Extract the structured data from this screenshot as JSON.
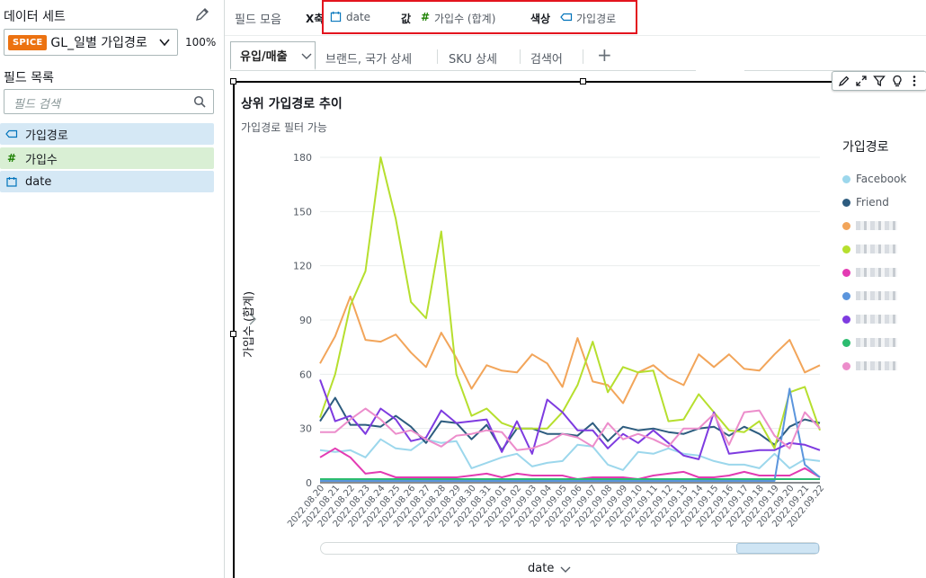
{
  "left_panel": {
    "dataset_title": "데이터 세트",
    "dataset_badge": "SPICE",
    "dataset_name": "GL_일별 가입경로",
    "dataset_percent": "100%",
    "field_list_title": "필드 목록",
    "field_search_placeholder": "필드 검색",
    "fields": [
      {
        "icon": "dimension-tag-icon",
        "name": "가입경로"
      },
      {
        "icon": "measure-hash-icon",
        "name": "가입수"
      },
      {
        "icon": "date-calendar-icon",
        "name": "date"
      }
    ]
  },
  "field_wells": {
    "label": "필드 모음",
    "x_axis_label": "X축",
    "x_axis_value": "date",
    "value_label": "값",
    "value_value": "가입수 (합계)",
    "color_label": "색상",
    "color_value": "가입경로"
  },
  "tabs": {
    "active": "유입/매출",
    "others": [
      "브랜드, 국가 상세",
      "SKU 상세",
      "검색어"
    ]
  },
  "visual": {
    "title": "상위 가입경로 추이",
    "subtitle": "가입경로 필터 가능",
    "y_axis_title": "가입수 (합계)",
    "x_axis_title": "date",
    "legend_title": "가입경로",
    "legend": [
      {
        "name": "Facebook",
        "color": "#9cd7ec"
      },
      {
        "name": "Friend",
        "color": "#2d5c7f"
      },
      {
        "name": "",
        "color": "#f2a55a"
      },
      {
        "name": "",
        "color": "#b6df2e"
      },
      {
        "name": "",
        "color": "#e33bb3"
      },
      {
        "name": "",
        "color": "#5b95dd"
      },
      {
        "name": "",
        "color": "#7e3be0"
      },
      {
        "name": "",
        "color": "#2cbc6f"
      },
      {
        "name": "",
        "color": "#ec8dcb"
      }
    ]
  },
  "chart_data": {
    "type": "line",
    "xlabel": "date",
    "ylabel": "가입수 (합계)",
    "ylim": [
      0,
      180
    ],
    "yticks": [
      0,
      30,
      60,
      90,
      120,
      150,
      180
    ],
    "x": [
      "2022.08.20",
      "2022.08.21",
      "2022.08.22",
      "2022.08.23",
      "2022.08.24",
      "2022.08.25",
      "2022.08.26",
      "2022.08.27",
      "2022.08.28",
      "2022.08.29",
      "2022.08.30",
      "2022.08.31",
      "2022.09.01",
      "2022.09.02",
      "2022.09.03",
      "2022.09.04",
      "2022.09.05",
      "2022.09.06",
      "2022.09.07",
      "2022.09.08",
      "2022.09.09",
      "2022.09.10",
      "2022.09.11",
      "2022.09.12",
      "2022.09.13",
      "2022.09.14",
      "2022.09.15",
      "2022.09.16",
      "2022.09.17",
      "2022.09.18",
      "2022.09.19",
      "2022.09.20",
      "2022.09.21",
      "2022.09.22"
    ],
    "series": [
      {
        "name": "Facebook",
        "color": "#9cd7ec",
        "values": [
          18,
          17,
          18,
          14,
          24,
          19,
          18,
          24,
          22,
          23,
          8,
          11,
          14,
          16,
          9,
          11,
          12,
          21,
          20,
          10,
          7,
          17,
          16,
          19,
          16,
          15,
          12,
          10,
          10,
          8,
          16,
          8,
          13,
          12
        ]
      },
      {
        "name": "Friend",
        "color": "#2d5c7f",
        "values": [
          34,
          47,
          32,
          32,
          31,
          37,
          31,
          22,
          34,
          33,
          24,
          32,
          18,
          30,
          30,
          27,
          27,
          26,
          33,
          23,
          31,
          29,
          30,
          28,
          27,
          30,
          31,
          26,
          31,
          27,
          21,
          31,
          35,
          33
        ]
      },
      {
        "name": "",
        "color": "#f2a55a",
        "values": [
          66,
          81,
          103,
          79,
          78,
          82,
          72,
          64,
          83,
          69,
          52,
          65,
          62,
          61,
          71,
          66,
          53,
          80,
          56,
          54,
          44,
          61,
          65,
          58,
          54,
          71,
          64,
          71,
          63,
          62,
          71,
          79,
          61,
          65
        ]
      },
      {
        "name": "",
        "color": "#b6df2e",
        "values": [
          36,
          60,
          98,
          117,
          180,
          146,
          100,
          91,
          139,
          60,
          37,
          41,
          33,
          30,
          30,
          30,
          39,
          54,
          78,
          50,
          64,
          61,
          62,
          34,
          35,
          49,
          39,
          29,
          28,
          34,
          19,
          50,
          53,
          29
        ]
      },
      {
        "name": "",
        "color": "#e33bb3",
        "values": [
          14,
          19,
          14,
          5,
          6,
          3,
          3,
          3,
          3,
          3,
          4,
          5,
          3,
          5,
          4,
          4,
          4,
          2,
          3,
          3,
          3,
          2,
          4,
          5,
          6,
          3,
          3,
          4,
          6,
          4,
          4,
          4,
          8,
          3
        ]
      },
      {
        "name": "",
        "color": "#5b95dd",
        "values": [
          1,
          1,
          1,
          1,
          1,
          1,
          1,
          1,
          1,
          1,
          1,
          1,
          1,
          1,
          1,
          1,
          1,
          1,
          1,
          1,
          1,
          1,
          1,
          1,
          1,
          1,
          1,
          1,
          1,
          1,
          1,
          52,
          10,
          3
        ]
      },
      {
        "name": "",
        "color": "#7e3be0",
        "values": [
          57,
          34,
          37,
          27,
          41,
          35,
          23,
          25,
          40,
          33,
          34,
          35,
          17,
          34,
          16,
          46,
          39,
          29,
          29,
          19,
          27,
          22,
          29,
          22,
          15,
          13,
          39,
          16,
          17,
          18,
          18,
          22,
          21,
          18
        ]
      },
      {
        "name": "",
        "color": "#2cbc6f",
        "values": [
          2,
          2,
          2,
          2,
          2,
          2,
          2,
          2,
          2,
          2,
          2,
          2,
          2,
          2,
          2,
          2,
          2,
          2,
          2,
          2,
          2,
          2,
          2,
          2,
          2,
          2,
          2,
          2,
          2,
          2,
          2,
          2,
          2,
          2
        ]
      },
      {
        "name": "",
        "color": "#ec8dcb",
        "values": [
          28,
          28,
          35,
          41,
          35,
          27,
          29,
          24,
          20,
          26,
          27,
          29,
          28,
          18,
          19,
          22,
          27,
          25,
          20,
          33,
          24,
          27,
          24,
          20,
          30,
          30,
          38,
          21,
          39,
          40,
          26,
          19,
          39,
          30
        ]
      }
    ]
  }
}
